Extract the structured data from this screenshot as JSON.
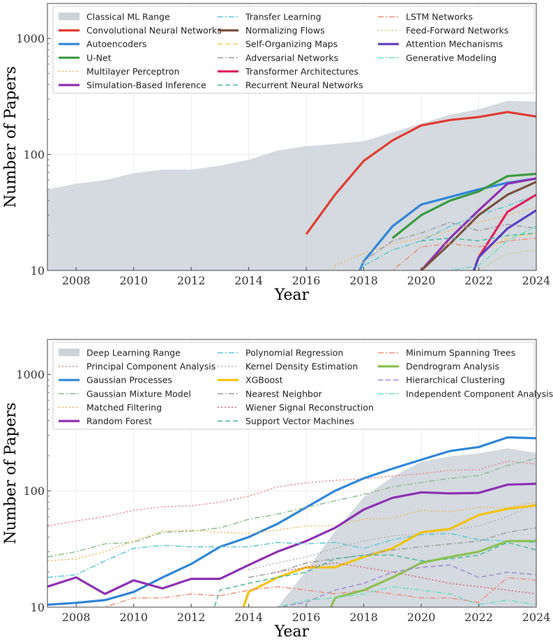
{
  "chart_data": [
    {
      "type": "line",
      "xlabel": "Year",
      "ylabel": "Number of Papers",
      "yscale": "log",
      "xlim": [
        2007,
        2024
      ],
      "ylim": [
        10,
        2000
      ],
      "xticks": [
        2008,
        2010,
        2012,
        2014,
        2016,
        2018,
        2020,
        2022,
        2024
      ],
      "yticks": [
        10,
        100,
        1000
      ],
      "grid": true,
      "legend_position": "top",
      "x": [
        2007,
        2008,
        2009,
        2010,
        2011,
        2012,
        2013,
        2014,
        2015,
        2016,
        2017,
        2018,
        2019,
        2020,
        2021,
        2022,
        2023,
        2024
      ],
      "band": {
        "name": "Classical ML Range",
        "color": "#cdd4d9",
        "upper": [
          50,
          56,
          60,
          69,
          74,
          74,
          80,
          90,
          108,
          118,
          123,
          130,
          155,
          185,
          220,
          245,
          290,
          285
        ],
        "lower": [
          10,
          10,
          10,
          10,
          10,
          10,
          10,
          10,
          10,
          10,
          10,
          10,
          10,
          10,
          10,
          10,
          10,
          10
        ]
      },
      "series": [
        {
          "name": "Convolutional Neural Networks",
          "color": "#e03c31",
          "style": "solid",
          "width": 3.2,
          "values": [
            null,
            null,
            null,
            null,
            null,
            null,
            null,
            null,
            null,
            20.5,
            45,
            88,
            132,
            178,
            198,
            210,
            232,
            212
          ]
        },
        {
          "name": "Autoencoders",
          "color": "#2f86d9",
          "style": "solid",
          "width": 3.2,
          "values": [
            null,
            null,
            null,
            null,
            null,
            null,
            null,
            null,
            null,
            null,
            null,
            12,
            24,
            37,
            43,
            50,
            57,
            62
          ]
        },
        {
          "name": "U-Net",
          "color": "#3a9a41",
          "style": "solid",
          "width": 3.2,
          "values": [
            null,
            null,
            null,
            null,
            null,
            null,
            null,
            null,
            null,
            null,
            null,
            null,
            19,
            30,
            40,
            48,
            65,
            68
          ]
        },
        {
          "name": "Multilayer Perceptron",
          "color": "#f4b55a",
          "style": "dotted",
          "width": 1.5,
          "values": [
            null,
            null,
            null,
            null,
            null,
            null,
            null,
            null,
            null,
            null,
            11,
            14,
            17,
            19,
            22,
            26,
            30,
            35
          ]
        },
        {
          "name": "Simulation-Based Inference",
          "color": "#8e30b3",
          "style": "solid",
          "width": 3.2,
          "values": [
            null,
            null,
            null,
            null,
            null,
            null,
            null,
            null,
            null,
            null,
            null,
            null,
            null,
            10,
            19,
            33,
            56,
            62
          ]
        },
        {
          "name": "Transfer Learning",
          "color": "#5bc7d8",
          "style": "dashdot",
          "width": 1.5,
          "values": [
            null,
            null,
            null,
            null,
            null,
            null,
            null,
            null,
            null,
            null,
            null,
            11,
            15,
            18,
            24,
            30,
            36,
            45
          ]
        },
        {
          "name": "Normalizing Flows",
          "color": "#7a5240",
          "style": "solid",
          "width": 3.2,
          "values": [
            null,
            null,
            null,
            null,
            null,
            null,
            null,
            null,
            null,
            null,
            null,
            null,
            null,
            10,
            17,
            30,
            45,
            58
          ]
        },
        {
          "name": "Self-Organizing Maps",
          "color": "#f0d060",
          "style": "dashed",
          "width": 1.5,
          "values": [
            null,
            null,
            null,
            null,
            null,
            null,
            null,
            null,
            null,
            null,
            null,
            null,
            null,
            null,
            null,
            14,
            19,
            21
          ]
        },
        {
          "name": "Adversarial Networks",
          "color": "#9e9e9e",
          "style": "dashdot",
          "width": 1.5,
          "values": [
            null,
            null,
            null,
            null,
            null,
            null,
            null,
            null,
            null,
            null,
            null,
            12,
            18,
            21,
            26,
            22,
            25,
            23
          ]
        },
        {
          "name": "Transformer Architectures",
          "color": "#e0245e",
          "style": "solid",
          "width": 3.2,
          "values": [
            null,
            null,
            null,
            null,
            null,
            null,
            null,
            null,
            null,
            null,
            null,
            null,
            null,
            null,
            null,
            13,
            32,
            45
          ]
        },
        {
          "name": "Recurrent Neural Networks",
          "color": "#48b8a0",
          "style": "dashed",
          "width": 1.5,
          "values": [
            null,
            null,
            null,
            null,
            null,
            null,
            null,
            null,
            null,
            null,
            null,
            null,
            null,
            18,
            19,
            18,
            20,
            21
          ]
        },
        {
          "name": "LSTM Networks",
          "color": "#f0907a",
          "style": "dashdot",
          "width": 1.5,
          "values": [
            null,
            null,
            null,
            null,
            null,
            null,
            null,
            null,
            null,
            null,
            null,
            null,
            10,
            16,
            17,
            16,
            18,
            19
          ]
        },
        {
          "name": "Feed-Forward Networks",
          "color": "#c8d27a",
          "style": "dotted",
          "width": 1.5,
          "values": [
            null,
            null,
            null,
            null,
            null,
            null,
            null,
            null,
            null,
            null,
            null,
            null,
            null,
            null,
            null,
            10,
            14,
            15
          ]
        },
        {
          "name": "Attention Mechanisms",
          "color": "#5b3fc4",
          "style": "solid",
          "width": 3.2,
          "values": [
            null,
            null,
            null,
            null,
            null,
            null,
            null,
            null,
            null,
            null,
            null,
            null,
            null,
            null,
            null,
            13,
            23,
            33
          ]
        },
        {
          "name": "Generative Modeling",
          "color": "#6be0c0",
          "style": "dashdot",
          "width": 1.5,
          "values": [
            null,
            null,
            null,
            null,
            null,
            null,
            null,
            null,
            null,
            null,
            null,
            null,
            null,
            null,
            10,
            11,
            18,
            24
          ]
        }
      ]
    },
    {
      "type": "line",
      "xlabel": "Year",
      "ylabel": "Number of Papers",
      "yscale": "log",
      "xlim": [
        2007,
        2024
      ],
      "ylim": [
        10,
        2000
      ],
      "xticks": [
        2008,
        2010,
        2012,
        2014,
        2016,
        2018,
        2020,
        2022,
        2024
      ],
      "yticks": [
        10,
        100,
        1000
      ],
      "grid": true,
      "legend_position": "top",
      "x": [
        2007,
        2008,
        2009,
        2010,
        2011,
        2012,
        2013,
        2014,
        2015,
        2016,
        2017,
        2018,
        2019,
        2020,
        2021,
        2022,
        2023,
        2024
      ],
      "band": {
        "name": "Deep Learning Range",
        "color": "#cdd4d9",
        "upper": [
          null,
          null,
          null,
          null,
          null,
          null,
          null,
          null,
          10,
          20.5,
          45,
          88,
          132,
          178,
          198,
          210,
          232,
          212
        ],
        "lower": [
          null,
          null,
          null,
          null,
          null,
          null,
          null,
          null,
          10,
          10,
          10,
          10,
          10,
          10,
          10,
          10,
          10,
          10
        ]
      },
      "series": [
        {
          "name": "Principal Component Analysis",
          "color": "#f08080",
          "style": "dotted",
          "width": 1.5,
          "values": [
            50,
            55,
            60,
            68,
            73,
            74,
            80,
            90,
            108,
            117,
            123,
            127,
            134,
            140,
            150,
            152,
            180,
            170
          ]
        },
        {
          "name": "Gaussian Processes",
          "color": "#2f86d9",
          "style": "solid",
          "width": 3.2,
          "values": [
            10.5,
            10.9,
            11.5,
            13.5,
            18,
            23.5,
            33,
            40,
            52,
            72,
            100,
            128,
            155,
            185,
            220,
            238,
            288,
            283
          ]
        },
        {
          "name": "Gaussian Mixture Model",
          "color": "#8fbf8f",
          "style": "dashdot",
          "width": 1.5,
          "values": [
            27,
            30,
            35,
            36,
            44,
            45,
            48,
            57,
            63,
            72,
            82,
            93,
            108,
            118,
            128,
            135,
            165,
            190
          ]
        },
        {
          "name": "Matched Filtering",
          "color": "#f4b55a",
          "style": "dotted",
          "width": 1.5,
          "values": [
            25,
            26,
            30,
            37,
            45,
            46,
            44,
            43,
            46,
            50,
            50,
            57,
            58,
            68,
            66,
            72,
            72,
            80
          ]
        },
        {
          "name": "Random Forest",
          "color": "#8e30b3",
          "style": "solid",
          "width": 3.2,
          "values": [
            15,
            18,
            13,
            17,
            14.5,
            17.5,
            17.5,
            23,
            30,
            37,
            48,
            69,
            87,
            97,
            95,
            96,
            113,
            115
          ]
        },
        {
          "name": "Polynomial Regression",
          "color": "#5bc7d8",
          "style": "dashdot",
          "width": 1.5,
          "values": [
            18,
            19,
            25,
            32,
            34,
            33,
            33,
            33,
            36,
            35,
            36,
            32,
            38,
            42,
            43,
            38,
            37,
            36
          ]
        },
        {
          "name": "Kernel Density Estimation",
          "color": "#b0b0b0",
          "style": "dotted",
          "width": 1.5,
          "values": [
            null,
            null,
            null,
            null,
            null,
            null,
            null,
            21,
            24,
            27,
            32,
            37,
            41,
            43,
            46,
            50,
            60,
            78
          ]
        },
        {
          "name": "XGBoost",
          "color": "#f4c20d",
          "style": "solid",
          "width": 3.2,
          "values": [
            null,
            null,
            null,
            null,
            null,
            null,
            null,
            13.5,
            18,
            22,
            22,
            27,
            32,
            44,
            47,
            62,
            70,
            75
          ]
        },
        {
          "name": "Nearest Neighbor",
          "color": "#9e9e9e",
          "style": "dashdot",
          "width": 1.5,
          "values": [
            null,
            null,
            null,
            null,
            null,
            null,
            null,
            18,
            20,
            24,
            26,
            28,
            31,
            33,
            35,
            37,
            44,
            48
          ]
        },
        {
          "name": "Wiener Signal Reconstruction",
          "color": "#e05a78",
          "style": "dotted",
          "width": 1.5,
          "values": [
            null,
            null,
            null,
            null,
            null,
            null,
            null,
            null,
            20,
            22,
            24,
            22,
            20,
            18,
            16,
            15,
            14,
            13
          ]
        },
        {
          "name": "Support Vector Machines",
          "color": "#48b8a0",
          "style": "dashed",
          "width": 1.5,
          "values": [
            null,
            null,
            null,
            null,
            null,
            null,
            14,
            16,
            18,
            20,
            26,
            28,
            28,
            25,
            26,
            28,
            36,
            31
          ]
        },
        {
          "name": "Minimum Spanning Trees",
          "color": "#f0907a",
          "style": "dashdot",
          "width": 1.5,
          "values": [
            null,
            null,
            10,
            12,
            12,
            13,
            12.5,
            14,
            15,
            14,
            13,
            14,
            13,
            12,
            12,
            11,
            18,
            17
          ]
        },
        {
          "name": "Dendrogram Analysis",
          "color": "#8cc152",
          "style": "solid",
          "width": 3.2,
          "values": [
            null,
            null,
            null,
            null,
            null,
            null,
            null,
            null,
            null,
            null,
            12,
            14,
            18,
            24,
            27,
            30,
            37,
            37
          ]
        },
        {
          "name": "Hierarchical Clustering",
          "color": "#a389d4",
          "style": "dashed",
          "width": 1.5,
          "values": [
            null,
            null,
            null,
            null,
            null,
            null,
            null,
            null,
            10,
            11,
            14,
            16,
            20,
            22,
            23,
            18,
            20,
            19
          ]
        },
        {
          "name": "Independent Component Analysis",
          "color": "#6be0c0",
          "style": "dashdot",
          "width": 1.5,
          "values": [
            null,
            null,
            null,
            null,
            null,
            null,
            null,
            null,
            10,
            11.5,
            12,
            13,
            15,
            14,
            13,
            10.5,
            11.5,
            10.5
          ]
        }
      ]
    }
  ]
}
